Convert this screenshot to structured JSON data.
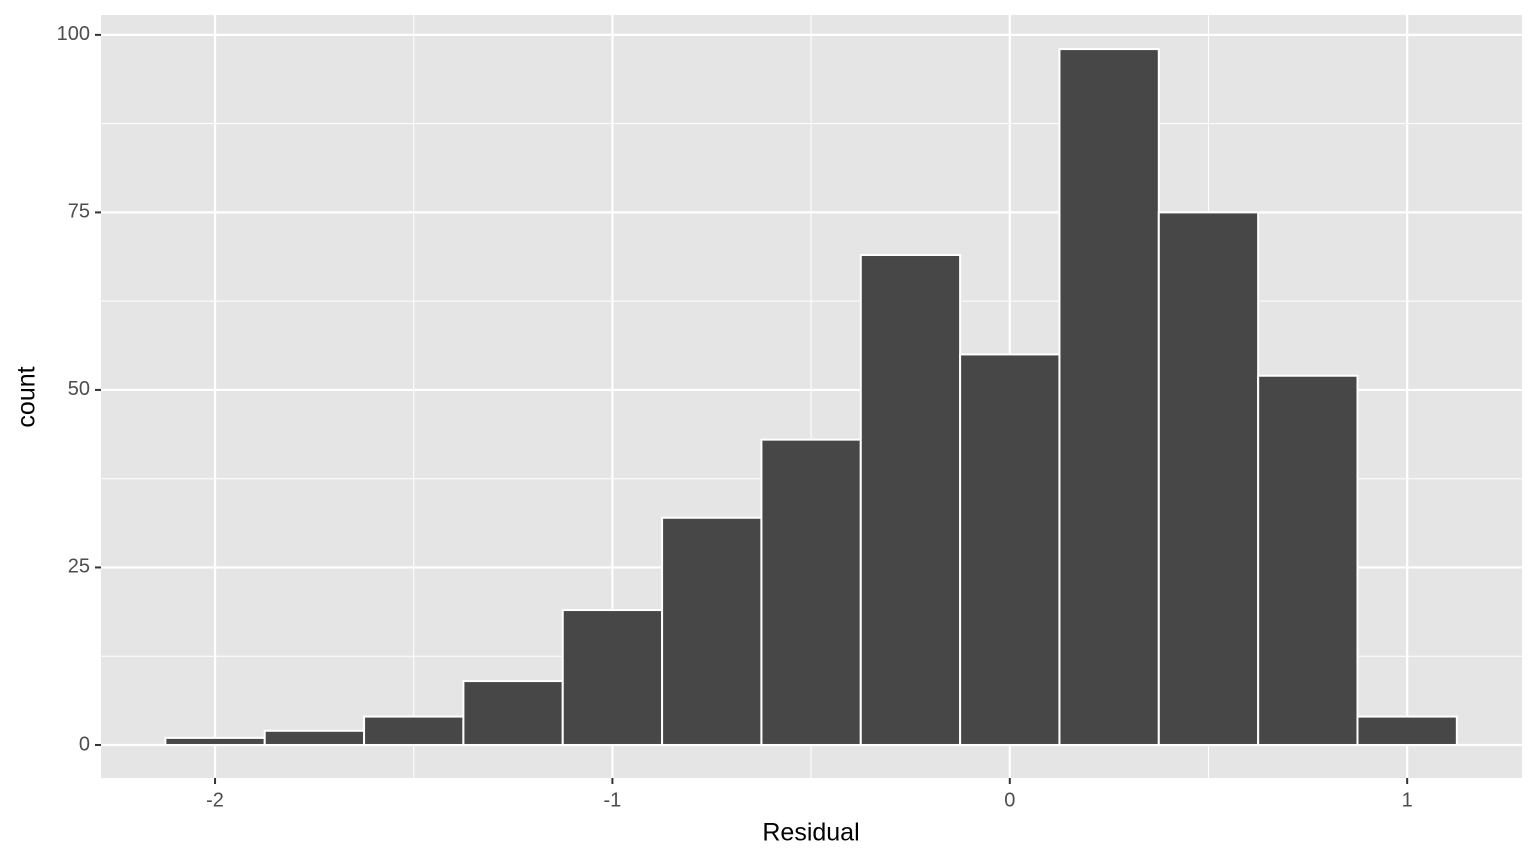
{
  "chart_data": {
    "type": "histogram",
    "x_label": "Residual",
    "y_label": "count",
    "bins": [
      -2.125,
      -1.875,
      -1.625,
      -1.375,
      -1.125,
      -0.875,
      -0.625,
      -0.375,
      -0.125,
      0.125,
      0.375,
      0.625,
      0.875,
      1.125
    ],
    "counts": [
      1,
      2,
      4,
      9,
      19,
      32,
      43,
      69,
      55,
      98,
      75,
      52,
      4
    ],
    "color": "#474747",
    "edge_color": "#ffffff",
    "xlim": [
      -2.287,
      1.289
    ],
    "xticks": [
      -2,
      -1,
      0,
      1
    ],
    "xminor": [
      -1.5,
      -0.5,
      0.5
    ],
    "ylim": [
      -4.65,
      102.8
    ],
    "yticks": [
      0,
      25,
      50,
      75,
      100
    ],
    "yminor": [
      12.5,
      37.5,
      62.5,
      87.5
    ],
    "grid": true,
    "panel_color": "#e5e5e5"
  }
}
